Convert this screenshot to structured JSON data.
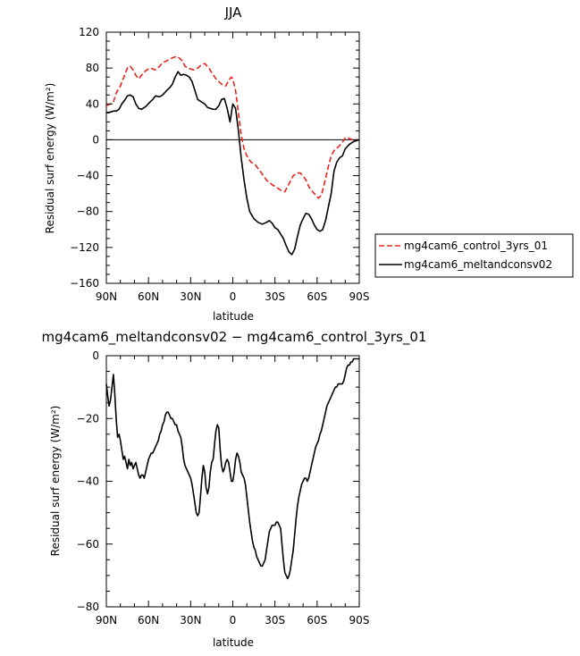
{
  "chart_data": [
    {
      "type": "line",
      "title": "JJA",
      "xlabel": "latitude",
      "ylabel": "Residual surf energy (W/m²)",
      "xlim": [
        90,
        -90
      ],
      "ylim": [
        -160,
        120
      ],
      "xticks": [
        90,
        60,
        30,
        0,
        -30,
        -60,
        -90
      ],
      "xtick_labels": [
        "90N",
        "60N",
        "30N",
        "0",
        "30S",
        "60S",
        "90S"
      ],
      "yticks": [
        120,
        80,
        40,
        0,
        -40,
        -80,
        -120,
        -160
      ],
      "ytick_labels": [
        "120",
        "80",
        "40",
        "0",
        "−40",
        "−80",
        "−120",
        "−160"
      ],
      "legend_position": "right",
      "series": [
        {
          "name": "mg4cam6_control_3yrs_01",
          "color": "#e8231c",
          "dash": "dashed",
          "x": [
            90,
            87,
            85,
            83,
            80,
            77,
            75,
            73,
            71,
            69,
            67,
            65,
            62,
            59,
            57,
            55,
            52,
            50,
            47,
            45,
            42,
            40,
            38,
            36,
            34,
            32,
            30,
            28,
            25,
            22,
            20,
            17,
            15,
            12,
            10,
            8,
            5,
            3,
            1,
            0,
            -2,
            -4,
            -6,
            -8,
            -10,
            -13,
            -16,
            -20,
            -24,
            -28,
            -32,
            -35,
            -37,
            -39,
            -41,
            -43,
            -46,
            -48,
            -50,
            -52,
            -55,
            -58,
            -61,
            -63,
            -65,
            -68,
            -70,
            -72,
            -75,
            -78,
            -80,
            -82,
            -85,
            -88,
            -90
          ],
          "y": [
            38,
            40,
            42,
            52,
            60,
            72,
            80,
            82,
            78,
            72,
            68,
            72,
            77,
            80,
            79,
            78,
            82,
            86,
            88,
            90,
            92,
            93,
            91,
            88,
            82,
            80,
            79,
            78,
            80,
            84,
            85,
            80,
            75,
            68,
            65,
            62,
            60,
            66,
            70,
            68,
            55,
            30,
            5,
            -10,
            -18,
            -25,
            -28,
            -36,
            -45,
            -50,
            -54,
            -57,
            -58,
            -52,
            -46,
            -40,
            -37,
            -37,
            -40,
            -45,
            -55,
            -60,
            -65,
            -62,
            -50,
            -30,
            -18,
            -12,
            -8,
            -3,
            2,
            2,
            0,
            0,
            0
          ]
        },
        {
          "name": "mg4cam6_meltandconsv02",
          "color": "#000000",
          "dash": "solid",
          "x": [
            90,
            87,
            85,
            83,
            81,
            79,
            77,
            75,
            73,
            71,
            69,
            67,
            65,
            62,
            59,
            57,
            55,
            52,
            50,
            47,
            45,
            43,
            41,
            39,
            37,
            35,
            33,
            31,
            29,
            27,
            25,
            22,
            20,
            18,
            16,
            14,
            12,
            10,
            8,
            6,
            4,
            2,
            0,
            -2,
            -4,
            -6,
            -8,
            -10,
            -12,
            -15,
            -18,
            -21,
            -24,
            -26,
            -28,
            -30,
            -32,
            -34,
            -36,
            -38,
            -40,
            -42,
            -44,
            -46,
            -48,
            -50,
            -52,
            -54,
            -56,
            -58,
            -60,
            -62,
            -64,
            -66,
            -68,
            -70,
            -72,
            -74,
            -76,
            -78,
            -80,
            -83,
            -86,
            -88,
            -90
          ],
          "y": [
            30,
            31,
            32,
            32,
            34,
            40,
            44,
            49,
            50,
            48,
            40,
            35,
            34,
            37,
            42,
            45,
            49,
            48,
            50,
            55,
            58,
            62,
            70,
            76,
            72,
            73,
            72,
            70,
            65,
            55,
            45,
            42,
            40,
            36,
            35,
            34,
            34,
            38,
            45,
            46,
            35,
            20,
            40,
            35,
            10,
            -20,
            -45,
            -65,
            -80,
            -88,
            -92,
            -94,
            -92,
            -90,
            -93,
            -98,
            -100,
            -105,
            -110,
            -118,
            -125,
            -128,
            -122,
            -108,
            -95,
            -88,
            -82,
            -83,
            -88,
            -95,
            -100,
            -102,
            -100,
            -90,
            -75,
            -60,
            -35,
            -25,
            -20,
            -18,
            -10,
            -5,
            -2,
            -1,
            0
          ]
        }
      ]
    },
    {
      "type": "line",
      "title": "mg4cam6_meltandconsv02 − mg4cam6_control_3yrs_01",
      "xlabel": "latitude",
      "ylabel": "Residual surf energy (W/m²)",
      "xlim": [
        90,
        -90
      ],
      "ylim": [
        -80,
        0
      ],
      "xticks": [
        90,
        60,
        30,
        0,
        -30,
        -60,
        -90
      ],
      "xtick_labels": [
        "90N",
        "60N",
        "30N",
        "0",
        "30S",
        "60S",
        "90S"
      ],
      "yticks": [
        0,
        -20,
        -40,
        -60,
        -80
      ],
      "ytick_labels": [
        "0",
        "−20",
        "−40",
        "−60",
        "−80"
      ],
      "series": [
        {
          "name": "",
          "color": "#000000",
          "dash": "solid",
          "x": [
            90,
            89,
            88,
            87,
            86,
            85,
            84,
            83,
            82,
            81,
            80,
            79,
            78,
            77,
            76,
            75,
            74,
            73,
            72,
            71,
            70,
            69,
            68,
            67,
            66,
            65,
            64,
            63,
            62,
            61,
            60,
            59,
            58,
            57,
            56,
            55,
            54,
            53,
            52,
            51,
            50,
            49,
            48,
            47,
            46,
            45,
            44,
            43,
            42,
            41,
            40,
            39,
            38,
            37,
            36,
            35,
            34,
            33,
            32,
            31,
            30,
            29,
            28,
            27,
            26,
            25,
            24,
            23,
            22,
            21,
            20,
            19,
            18,
            17,
            16,
            15,
            14,
            13,
            12,
            11,
            10,
            9,
            8,
            7,
            6,
            5,
            4,
            3,
            2,
            1,
            0,
            -1,
            -2,
            -3,
            -4,
            -5,
            -6,
            -7,
            -8,
            -9,
            -10,
            -11,
            -12,
            -13,
            -14,
            -15,
            -16,
            -17,
            -18,
            -19,
            -20,
            -21,
            -22,
            -23,
            -24,
            -25,
            -26,
            -27,
            -28,
            -29,
            -30,
            -31,
            -32,
            -33,
            -34,
            -35,
            -36,
            -37,
            -38,
            -39,
            -40,
            -41,
            -42,
            -43,
            -44,
            -45,
            -46,
            -47,
            -48,
            -49,
            -50,
            -51,
            -52,
            -53,
            -54,
            -55,
            -56,
            -57,
            -58,
            -59,
            -60,
            -61,
            -62,
            -63,
            -64,
            -65,
            -66,
            -67,
            -68,
            -69,
            -70,
            -71,
            -72,
            -73,
            -74,
            -75,
            -76,
            -77,
            -78,
            -79,
            -80,
            -81,
            -82,
            -83,
            -84,
            -85,
            -86,
            -87,
            -88,
            -89,
            -90
          ],
          "y": [
            -9,
            -13,
            -16,
            -14,
            -10,
            -6,
            -12,
            -20,
            -26,
            -25,
            -27,
            -30,
            -33,
            -32,
            -34,
            -36,
            -33,
            -35,
            -34,
            -36,
            -35,
            -34,
            -36,
            -38,
            -39,
            -38,
            -38,
            -39,
            -37,
            -35,
            -33,
            -32,
            -31,
            -31,
            -30,
            -29,
            -28,
            -27,
            -25,
            -24,
            -22,
            -21,
            -19,
            -18,
            -18,
            -19,
            -20,
            -20,
            -21,
            -22,
            -22,
            -24,
            -25,
            -26,
            -29,
            -33,
            -35,
            -36,
            -37,
            -38,
            -39,
            -41,
            -44,
            -47,
            -50,
            -51,
            -50,
            -45,
            -39,
            -35,
            -37,
            -42,
            -44,
            -42,
            -37,
            -34,
            -33,
            -28,
            -24,
            -22,
            -23,
            -30,
            -35,
            -37,
            -36,
            -34,
            -33,
            -34,
            -37,
            -40,
            -40,
            -37,
            -33,
            -31,
            -32,
            -34,
            -37,
            -38,
            -39,
            -41,
            -45,
            -49,
            -53,
            -56,
            -59,
            -61,
            -62,
            -64,
            -65,
            -66,
            -67,
            -67,
            -66,
            -65,
            -62,
            -59,
            -56,
            -55,
            -54,
            -54,
            -54,
            -53,
            -53,
            -54,
            -55,
            -60,
            -65,
            -69,
            -70,
            -71,
            -70,
            -68,
            -65,
            -62,
            -57,
            -52,
            -48,
            -45,
            -43,
            -41,
            -40,
            -39,
            -39,
            -40,
            -39,
            -37,
            -35,
            -33,
            -31,
            -29,
            -28,
            -27,
            -25,
            -24,
            -22,
            -20,
            -18,
            -16,
            -15,
            -14,
            -13,
            -12,
            -11,
            -10,
            -10,
            -9,
            -9,
            -9,
            -9,
            -8,
            -6,
            -4,
            -3,
            -3,
            -2,
            -2,
            -1,
            -1,
            -1,
            -1,
            -1
          ]
        }
      ]
    }
  ]
}
